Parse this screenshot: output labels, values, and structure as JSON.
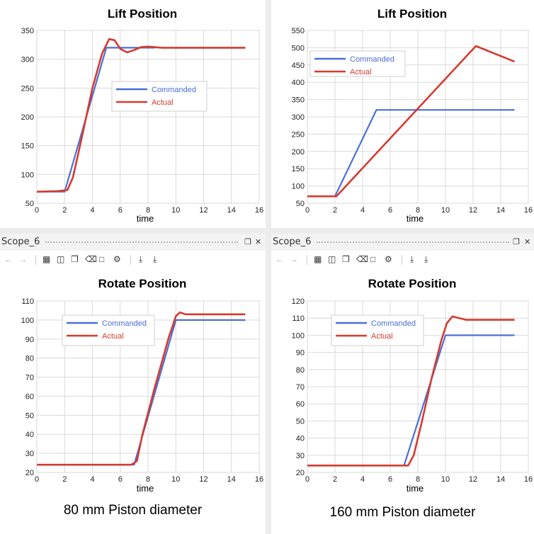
{
  "scope_bars": [
    {
      "title": "Scope_6"
    },
    {
      "title": "Scope_6"
    }
  ],
  "toolbar": {
    "icons": [
      "back-arrow",
      "forward-arrow",
      "table-icon",
      "chart-icon",
      "copy-icon",
      "delete-icon",
      "square-icon",
      "gear-icon",
      "export-icon",
      "import-icon"
    ],
    "window_controls": [
      "restore",
      "close"
    ]
  },
  "captions": [
    "80 mm Piston diameter",
    "160 mm Piston diameter"
  ],
  "colors": {
    "commanded": "#4a6fd8",
    "actual": "#d63a2f",
    "grid": "#d9d9d9"
  },
  "chart_data": [
    {
      "type": "line",
      "title": "Lift Position",
      "xlabel": "time",
      "ylabel": "",
      "xlim": [
        0,
        16
      ],
      "ylim": [
        50,
        350
      ],
      "xticks": [
        0,
        2,
        4,
        6,
        8,
        10,
        12,
        14,
        16
      ],
      "yticks": [
        50,
        100,
        150,
        200,
        250,
        300,
        350
      ],
      "grid": true,
      "legend": "center-right",
      "series": [
        {
          "name": "Commanded",
          "x": [
            0,
            2,
            5,
            8.5
          ],
          "y": [
            70,
            70,
            320,
            320
          ]
        },
        {
          "name": "Actual",
          "x": [
            0,
            1.5,
            2.2,
            2.6,
            3.2,
            4.0,
            4.7,
            5.2,
            5.6,
            6.0,
            6.5,
            7.0,
            7.5,
            8.0,
            9.0,
            12,
            15
          ],
          "y": [
            70,
            71,
            73,
            95,
            160,
            250,
            310,
            335,
            333,
            318,
            312,
            316,
            321,
            322,
            320,
            320,
            320
          ]
        }
      ]
    },
    {
      "type": "line",
      "title": "Lift Position",
      "xlabel": "time",
      "ylabel": "",
      "xlim": [
        0,
        16
      ],
      "ylim": [
        50,
        550
      ],
      "xticks": [
        0,
        2,
        4,
        6,
        8,
        10,
        12,
        14,
        16
      ],
      "yticks": [
        50,
        100,
        150,
        200,
        250,
        300,
        350,
        400,
        450,
        500,
        550
      ],
      "grid": true,
      "legend": "top-left",
      "series": [
        {
          "name": "Commanded",
          "x": [
            0,
            2,
            5,
            15
          ],
          "y": [
            70,
            70,
            320,
            320
          ]
        },
        {
          "name": "Actual",
          "x": [
            0,
            2.1,
            12.2,
            15
          ],
          "y": [
            70,
            70,
            505,
            460
          ]
        }
      ]
    },
    {
      "type": "line",
      "title": "Rotate Position",
      "xlabel": "time",
      "ylabel": "",
      "xlim": [
        0,
        16
      ],
      "ylim": [
        20,
        110
      ],
      "xticks": [
        0,
        2,
        4,
        6,
        8,
        10,
        12,
        14,
        16
      ],
      "yticks": [
        20,
        30,
        40,
        50,
        60,
        70,
        80,
        90,
        100,
        110
      ],
      "grid": true,
      "legend": "top-left",
      "series": [
        {
          "name": "Commanded",
          "x": [
            0,
            7,
            10,
            15
          ],
          "y": [
            24,
            24,
            100,
            100
          ]
        },
        {
          "name": "Actual",
          "x": [
            0,
            6.8,
            7.2,
            7.6,
            8.5,
            9.5,
            10.0,
            10.3,
            10.7,
            11.5,
            15
          ],
          "y": [
            24,
            24,
            26,
            40,
            65,
            91,
            102,
            104,
            103,
            103,
            103
          ]
        }
      ]
    },
    {
      "type": "line",
      "title": "Rotate Position",
      "xlabel": "time",
      "ylabel": "",
      "xlim": [
        0,
        16
      ],
      "ylim": [
        20,
        120
      ],
      "xticks": [
        0,
        2,
        4,
        6,
        8,
        10,
        12,
        14,
        16
      ],
      "yticks": [
        20,
        30,
        40,
        50,
        60,
        70,
        80,
        90,
        100,
        110,
        120
      ],
      "grid": true,
      "legend": "top-left",
      "series": [
        {
          "name": "Commanded",
          "x": [
            0,
            7,
            10,
            15
          ],
          "y": [
            24,
            24,
            100,
            100
          ]
        },
        {
          "name": "Actual",
          "x": [
            0,
            7.3,
            7.7,
            8.3,
            9.0,
            9.7,
            10.1,
            10.5,
            11.0,
            11.5,
            15
          ],
          "y": [
            24,
            24,
            30,
            50,
            75,
            97,
            107,
            111,
            110,
            109,
            109
          ]
        }
      ]
    }
  ]
}
